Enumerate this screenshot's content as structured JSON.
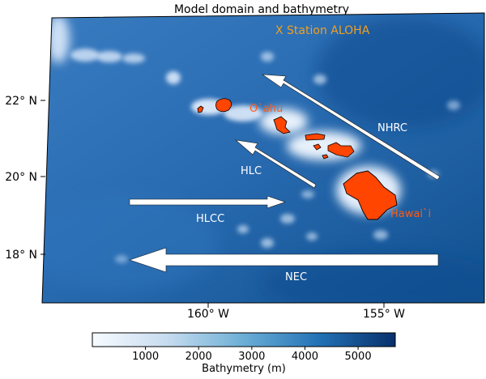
{
  "title": "Model domain and bathymetry",
  "station_label": "X Station ALOHA",
  "lat_ticks": [
    "22° N",
    "20° N",
    "18° N"
  ],
  "lon_ticks": [
    "160° W",
    "155° W"
  ],
  "islands": {
    "oahu": "O`ahu",
    "hawaii": "Hawai`i"
  },
  "currents": {
    "nhrc": "NHRC",
    "hlc": "HLC",
    "hlcc": "HLCC",
    "nec": "NEC"
  },
  "colorbar": {
    "label": "Bathymetry (m)",
    "ticks": [
      "1000",
      "2000",
      "3000",
      "4000",
      "5000"
    ],
    "min": 0,
    "max": 5700
  },
  "colors": {
    "ocean_deep": "#0b4a8f",
    "ocean_mid": "#2a6cb2",
    "shallow": "#eef5ff",
    "island_fill": "#ff4500",
    "label_orange": "#ff5a14",
    "station_gold": "#f0a020",
    "arrow": "#ffffff"
  }
}
